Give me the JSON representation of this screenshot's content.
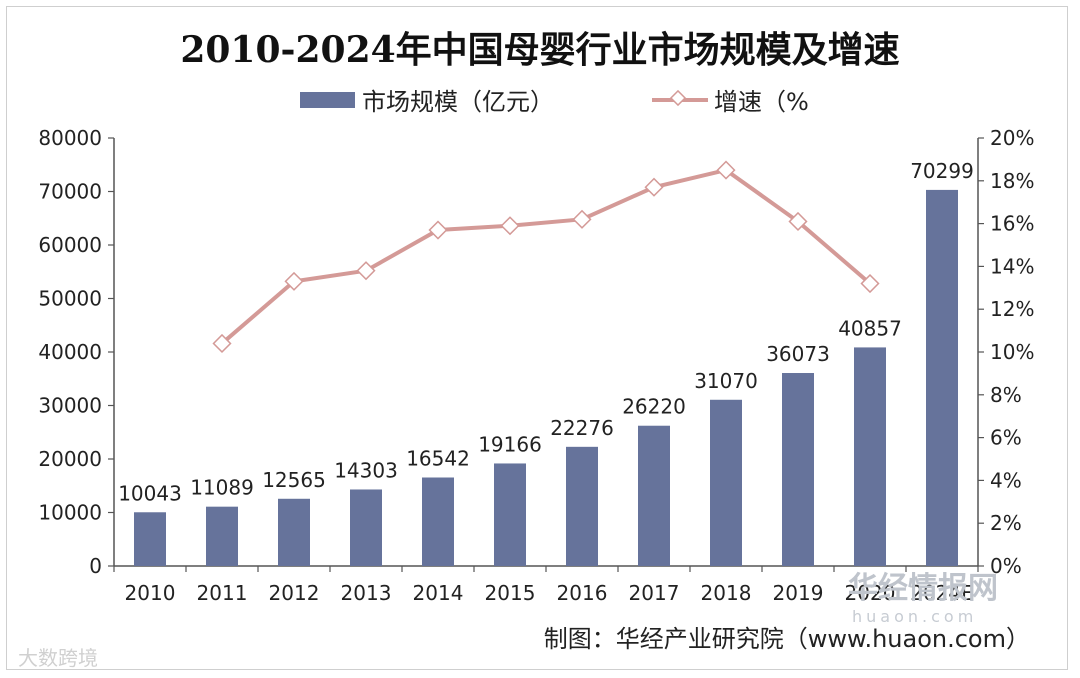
{
  "chart_data": {
    "type": "bar+line",
    "title": "2010-2024年中国母婴行业市场规模及增速",
    "categories": [
      "2010",
      "2011",
      "2012",
      "2013",
      "2014",
      "2015",
      "2016",
      "2017",
      "2018",
      "2019",
      "2020",
      "2024E"
    ],
    "category_labels": [
      "2010",
      "2011",
      "2012",
      "2013",
      "2014",
      "2015",
      "2016",
      "2017",
      "2018",
      "2019",
      "2020",
      "2024E"
    ],
    "series": [
      {
        "name": "市场规模（亿元）",
        "type": "bar",
        "axis": "left",
        "color": "#66739b",
        "values": [
          10043,
          11089,
          12565,
          14303,
          16542,
          19166,
          22276,
          26220,
          31070,
          36073,
          40857,
          70299
        ]
      },
      {
        "name": "增速（%",
        "type": "line",
        "axis": "right",
        "color": "#d49a97",
        "values": [
          null,
          10.4,
          13.3,
          13.8,
          15.7,
          15.9,
          16.2,
          17.7,
          18.5,
          16.1,
          13.2,
          null
        ]
      }
    ],
    "left_axis": {
      "min": 0,
      "max": 80000,
      "step": 10000,
      "ticks": [
        "0",
        "10000",
        "20000",
        "30000",
        "40000",
        "50000",
        "60000",
        "70000",
        "80000"
      ]
    },
    "right_axis": {
      "min": 0,
      "max": 20,
      "step": 2,
      "ticks": [
        "0%",
        "2%",
        "4%",
        "6%",
        "8%",
        "10%",
        "12%",
        "14%",
        "16%",
        "18%",
        "20%"
      ]
    },
    "legend_position": "top-center",
    "grid": false
  },
  "credit": "制图：华经产业研究院（www.huaon.com）",
  "watermark": {
    "brand": "华经情报网",
    "url": "huaon.com"
  },
  "corner_mark": "大数跨境",
  "colors": {
    "bar": "#66739b",
    "line": "#d49a97",
    "axis": "#555555",
    "marker_fill": "#ffffff"
  }
}
